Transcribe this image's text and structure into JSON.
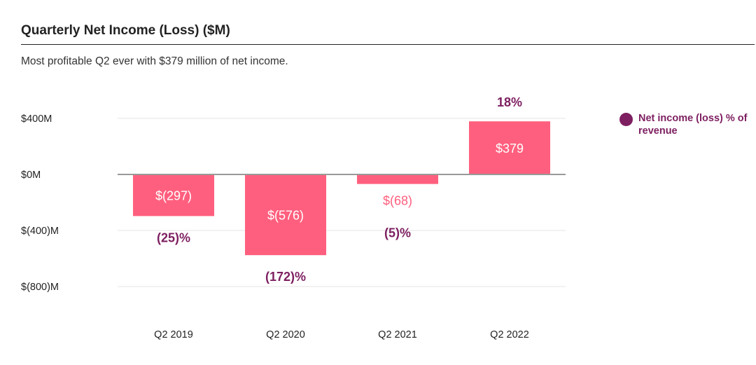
{
  "header": {
    "title": "Quarterly Net Income (Loss) ($M)",
    "subtitle": "Most profitable Q2 ever with $379 million of net income."
  },
  "legend": {
    "label": "Net income (loss) % of revenue",
    "color": "#7d1f60"
  },
  "chart_data": {
    "type": "bar",
    "title": "Quarterly Net Income (Loss) ($M)",
    "categories": [
      "Q2 2019",
      "Q2 2020",
      "Q2 2021",
      "Q2 2022"
    ],
    "values": [
      -297,
      -576,
      -68,
      379
    ],
    "value_labels": [
      "$(297)",
      "$(576)",
      "$(68)",
      "$379"
    ],
    "series": [
      {
        "name": "",
        "values": [
          -297,
          -576,
          -68,
          379
        ],
        "color": "#ff5f7e"
      },
      {
        "name": "Net income (loss) % of revenue",
        "values": [
          -25,
          -172,
          -5,
          18
        ],
        "labels": [
          "(25)%",
          "(172)%",
          "(5)%",
          "18%"
        ],
        "color": "#7d1f60"
      }
    ],
    "ylim": [
      -800,
      400
    ],
    "yticks": [
      400,
      0,
      -400,
      -800
    ],
    "ytick_labels": [
      "$400M",
      "$0M",
      "$(400)M",
      "$(800)M"
    ],
    "xlabel": "",
    "ylabel": "",
    "grid": true,
    "legend_position": "top-right",
    "colors": {
      "bar": "#ff5f7e",
      "pct": "#7d1f60",
      "grid": "#e6e6e6",
      "zero_line": "#999999"
    }
  }
}
